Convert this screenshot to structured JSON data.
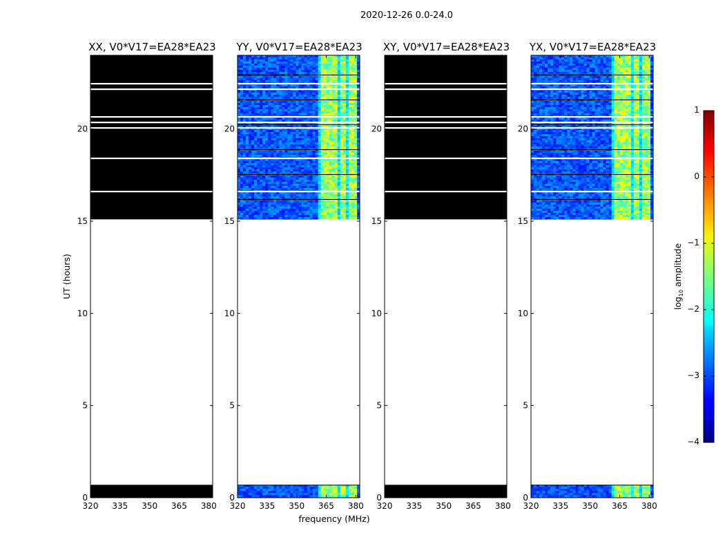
{
  "chart_data": {
    "type": "heatmap",
    "suptitle": "2020-12-26 0.0-24.0",
    "xlabel": "frequency (MHz)",
    "ylabel": "UT (hours)",
    "xlim": [
      320,
      382
    ],
    "ylim": [
      0,
      24
    ],
    "xticks": [
      320,
      335,
      350,
      365,
      380
    ],
    "yticks": [
      0,
      5,
      10,
      15,
      20
    ],
    "panels": [
      {
        "title": "XX, V0*V17=EA28*EA23",
        "pol": "XX",
        "data_present": false
      },
      {
        "title": "YY, V0*V17=EA28*EA23",
        "pol": "YY",
        "data_present": true
      },
      {
        "title": "XY, V0*V17=EA28*EA23",
        "pol": "XY",
        "data_present": false
      },
      {
        "title": "YX, V0*V17=EA28*EA23",
        "pol": "YX",
        "data_present": true
      }
    ],
    "observed_time_ranges_ut": [
      [
        0.0,
        0.7
      ],
      [
        15.1,
        24.0
      ]
    ],
    "bright_band_mhz": [
      361,
      380
    ],
    "colorbar": {
      "label": "log10 amplitude",
      "range": [
        -4,
        1
      ],
      "ticks": [
        "1",
        "0",
        "−1",
        "−2",
        "−3",
        "−4"
      ],
      "colormap": "jet"
    }
  }
}
